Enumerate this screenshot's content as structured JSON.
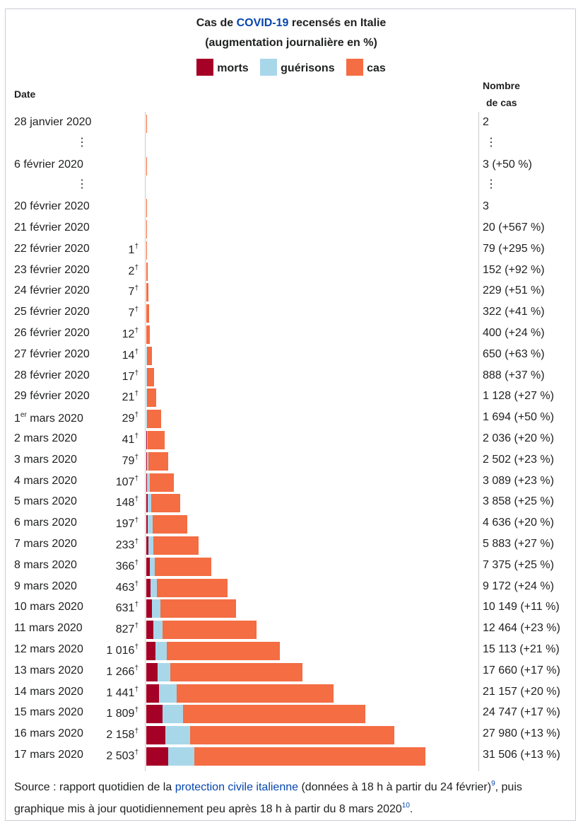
{
  "title": {
    "prefix": "Cas de ",
    "link": "COVID-19",
    "suffix": " recensés en Italie",
    "line2": "(augmentation journalière en %)"
  },
  "legend": [
    {
      "label": "morts",
      "color": "#a50026"
    },
    {
      "label": "guérisons",
      "color": "#a8d7ea"
    },
    {
      "label": "cas",
      "color": "#f46d43"
    }
  ],
  "headers": {
    "date": "Date",
    "cases_line1": "Nombre",
    "cases_line2": "de cas"
  },
  "source": {
    "prefix": "Source : rapport quotidien de la ",
    "link": "protection civile italienne",
    "middle": " (données à 18 h à partir du 24 février)",
    "ref1": "9",
    "rest": ", puis graphique mis à jour quotidiennement peu après 18 h à partir du 8 mars 2020",
    "ref2": "10",
    "end": "."
  },
  "chart_data": {
    "type": "bar",
    "orientation": "horizontal-stacked",
    "title": "Cas de COVID-19 recensés en Italie (augmentation journalière en %)",
    "series_order": [
      "morts",
      "guérisons",
      "cas"
    ],
    "rows": [
      {
        "date": "28 janvier 2020",
        "deaths_label": "",
        "cases_label": "2",
        "deaths": 0,
        "recovered": 0,
        "cases": 2
      },
      {
        "ellipsis": true
      },
      {
        "date": "6 février 2020",
        "deaths_label": "",
        "cases_label": "3 (+50 %)",
        "deaths": 0,
        "recovered": 0,
        "cases": 3
      },
      {
        "ellipsis": true
      },
      {
        "date": "20 février 2020",
        "deaths_label": "",
        "cases_label": "3",
        "deaths": 0,
        "recovered": 0,
        "cases": 3
      },
      {
        "date": "21 février 2020",
        "deaths_label": "",
        "cases_label": "20 (+567 %)",
        "deaths": 0,
        "recovered": 0,
        "cases": 20
      },
      {
        "date": "22 février 2020",
        "deaths_label": "1",
        "cases_label": "79 (+295 %)",
        "deaths": 1,
        "recovered": 0,
        "cases": 79
      },
      {
        "date": "23 février 2020",
        "deaths_label": "2",
        "cases_label": "152 (+92 %)",
        "deaths": 2,
        "recovered": 0,
        "cases": 152
      },
      {
        "date": "24 février 2020",
        "deaths_label": "7",
        "cases_label": "229 (+51 %)",
        "deaths": 7,
        "recovered": 1,
        "cases": 229
      },
      {
        "date": "25 février 2020",
        "deaths_label": "7",
        "cases_label": "322 (+41 %)",
        "deaths": 7,
        "recovered": 1,
        "cases": 322
      },
      {
        "date": "26 février 2020",
        "deaths_label": "12",
        "cases_label": "400 (+24 %)",
        "deaths": 12,
        "recovered": 3,
        "cases": 400
      },
      {
        "date": "27 février 2020",
        "deaths_label": "14",
        "cases_label": "650 (+63 %)",
        "deaths": 14,
        "recovered": 45,
        "cases": 650
      },
      {
        "date": "28 février 2020",
        "deaths_label": "17",
        "cases_label": "888 (+37 %)",
        "deaths": 17,
        "recovered": 46,
        "cases": 888
      },
      {
        "date": "29 février 2020",
        "deaths_label": "21",
        "cases_label": "1 128 (+27 %)",
        "deaths": 21,
        "recovered": 46,
        "cases": 1128
      },
      {
        "date": "1",
        "date_sup": "er",
        "date_rest": " mars 2020",
        "deaths_label": "29",
        "cases_label": "1 694 (+50 %)",
        "deaths": 29,
        "recovered": 83,
        "cases": 1694
      },
      {
        "date": "2 mars 2020",
        "deaths_label": "41",
        "cases_label": "2 036 (+20 %)",
        "deaths": 41,
        "recovered": 149,
        "cases": 2036
      },
      {
        "date": "3 mars 2020",
        "deaths_label": "79",
        "cases_label": "2 502 (+23 %)",
        "deaths": 79,
        "recovered": 160,
        "cases": 2502
      },
      {
        "date": "4 mars 2020",
        "deaths_label": "107",
        "cases_label": "3 089 (+23 %)",
        "deaths": 107,
        "recovered": 276,
        "cases": 3089
      },
      {
        "date": "5 mars 2020",
        "deaths_label": "148",
        "cases_label": "3 858 (+25 %)",
        "deaths": 148,
        "recovered": 414,
        "cases": 3858
      },
      {
        "date": "6 mars 2020",
        "deaths_label": "197",
        "cases_label": "4 636 (+20 %)",
        "deaths": 197,
        "recovered": 523,
        "cases": 4636
      },
      {
        "date": "7 mars 2020",
        "deaths_label": "233",
        "cases_label": "5 883 (+27 %)",
        "deaths": 233,
        "recovered": 589,
        "cases": 5883
      },
      {
        "date": "8 mars 2020",
        "deaths_label": "366",
        "cases_label": "7 375 (+25 %)",
        "deaths": 366,
        "recovered": 622,
        "cases": 7375
      },
      {
        "date": "9 mars 2020",
        "deaths_label": "463",
        "cases_label": "9 172 (+24 %)",
        "deaths": 463,
        "recovered": 724,
        "cases": 9172
      },
      {
        "date": "10 mars 2020",
        "deaths_label": "631",
        "cases_label": "10 149 (+11 %)",
        "deaths": 631,
        "recovered": 1004,
        "cases": 10149
      },
      {
        "date": "11 mars 2020",
        "deaths_label": "827",
        "cases_label": "12 464 (+23 %)",
        "deaths": 827,
        "recovered": 1045,
        "cases": 12464
      },
      {
        "date": "12 mars 2020",
        "deaths_label": "1 016",
        "cases_label": "15 113 (+21 %)",
        "deaths": 1016,
        "recovered": 1258,
        "cases": 15113
      },
      {
        "date": "13 mars 2020",
        "deaths_label": "1 266",
        "cases_label": "17 660 (+17 %)",
        "deaths": 1266,
        "recovered": 1439,
        "cases": 17660
      },
      {
        "date": "14 mars 2020",
        "deaths_label": "1 441",
        "cases_label": "21 157 (+20 %)",
        "deaths": 1441,
        "recovered": 1966,
        "cases": 21157
      },
      {
        "date": "15 mars 2020",
        "deaths_label": "1 809",
        "cases_label": "24 747 (+17 %)",
        "deaths": 1809,
        "recovered": 2335,
        "cases": 24747
      },
      {
        "date": "16 mars 2020",
        "deaths_label": "2 158",
        "cases_label": "27 980 (+13 %)",
        "deaths": 2158,
        "recovered": 2749,
        "cases": 27980
      },
      {
        "date": "17 mars 2020",
        "deaths_label": "2 503",
        "cases_label": "31 506 (+13 %)",
        "deaths": 2503,
        "recovered": 2941,
        "cases": 31506
      }
    ],
    "dagger": "†",
    "ellipsis_glyph": "⋮"
  }
}
